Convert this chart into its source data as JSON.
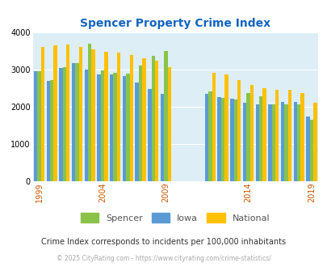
{
  "title": "Spencer Property Crime Index",
  "subtitle": "Crime Index corresponds to incidents per 100,000 inhabitants",
  "footer": "© 2025 CityRating.com - https://www.cityrating.com/crime-statistics/",
  "years": [
    1999,
    2000,
    2001,
    2002,
    2003,
    2004,
    2005,
    2006,
    2007,
    2008,
    2009,
    2011,
    2012,
    2013,
    2014,
    2015,
    2016,
    2017,
    2018,
    2019
  ],
  "spencer": [
    2950,
    2720,
    3050,
    3170,
    3680,
    2980,
    2900,
    2880,
    3100,
    3370,
    3500,
    2420,
    2230,
    2190,
    2360,
    2280,
    2060,
    2060,
    2060,
    1660
  ],
  "iowa": [
    2960,
    2700,
    3040,
    3160,
    3000,
    2870,
    2860,
    2820,
    2640,
    2480,
    2340,
    2340,
    2270,
    2210,
    2100,
    2060,
    2070,
    2120,
    2120,
    1730
  ],
  "national": [
    3600,
    3650,
    3660,
    3600,
    3540,
    3480,
    3440,
    3390,
    3300,
    3230,
    3050,
    2910,
    2870,
    2720,
    2590,
    2490,
    2460,
    2450,
    2360,
    2100
  ],
  "spencer_color": "#8bc34a",
  "iowa_color": "#5b9bd5",
  "national_color": "#ffc000",
  "bg_color": "#ddeef6",
  "ylim": [
    0,
    4000
  ],
  "yticks": [
    0,
    1000,
    2000,
    3000,
    4000
  ],
  "bar_width": 0.28,
  "title_color": "#1565c0",
  "subtitle_color": "#333333",
  "footer_color": "#aaaaaa",
  "xtick_color": "#cc5500",
  "legend_label_color": "#555555",
  "iowa_legend_color": "#6666cc"
}
